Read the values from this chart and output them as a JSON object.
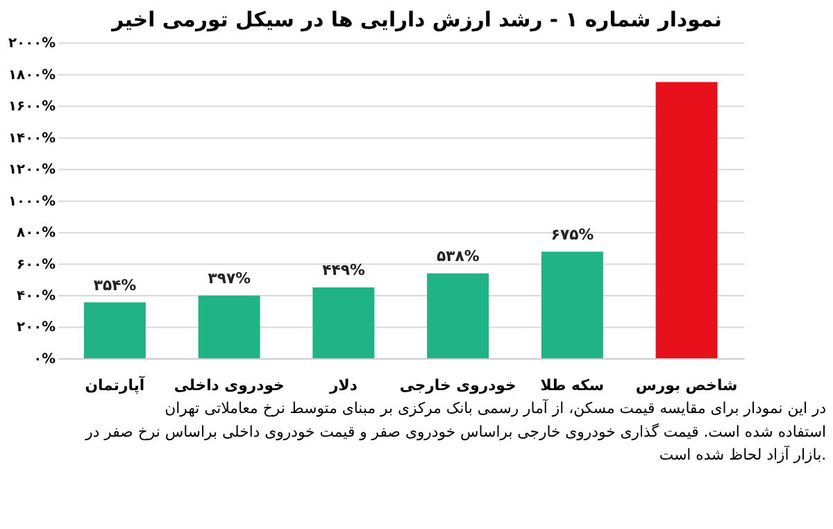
{
  "chart_data": {
    "type": "bar",
    "title": "نمودار شماره ۱ - رشد ارزش دارایی ها در سیکل تورمی اخیر",
    "categories": [
      "آپارتمان",
      "خودروی داخلی",
      "دلار",
      "خودروی خارجی",
      "سکه طلا",
      "شاخص بورس"
    ],
    "values": [
      354,
      397,
      449,
      538,
      675,
      1750
    ],
    "colors": [
      "#1fb386",
      "#1fb386",
      "#1fb386",
      "#1fb386",
      "#1fb386",
      "#e8101a"
    ],
    "value_labels": [
      "۳۵۴%",
      "۳۹۷%",
      "۴۴۹%",
      "۵۳۸%",
      "۶۷۵%",
      null
    ],
    "ylim": [
      0,
      2000
    ],
    "yticks": [
      {
        "value": 0,
        "label": "۰%"
      },
      {
        "value": 200,
        "label": "۲۰۰%"
      },
      {
        "value": 400,
        "label": "۴۰۰%"
      },
      {
        "value": 600,
        "label": "۶۰۰%"
      },
      {
        "value": 800,
        "label": "۸۰۰%"
      },
      {
        "value": 1000,
        "label": "۱۰۰۰%"
      },
      {
        "value": 1200,
        "label": "۱۲۰۰%"
      },
      {
        "value": 1400,
        "label": "۱۴۰۰%"
      },
      {
        "value": 1600,
        "label": "۱۶۰۰%"
      },
      {
        "value": 1800,
        "label": "۱۸۰۰%"
      },
      {
        "value": 2000,
        "label": "۲۰۰۰%"
      }
    ],
    "grid": "y",
    "annotations": [
      "در این نمودار برای مقایسه قیمت مسکن، از آمار رسمی بانک مرکزی بر مبنای متوسط نرخ معاملاتی تهران استفاده شده است. قیمت گذاری خودروی خارجی براساس خودروی صفر و قیمت خودروی داخلی براساس نرخ صفر در بازار آزاد لحاظ شده است."
    ]
  }
}
